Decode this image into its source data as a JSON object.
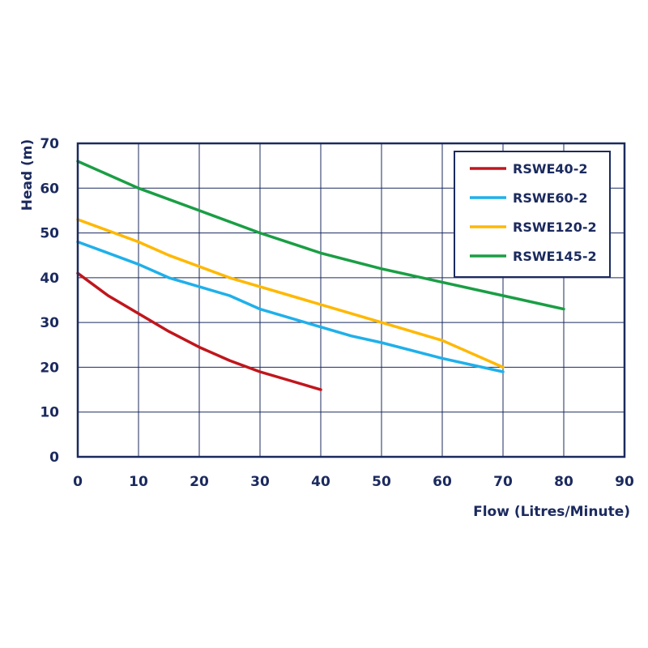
{
  "chart_data": {
    "type": "line",
    "title": "",
    "xlabel": "Flow (Litres/Minute)",
    "ylabel": "Head (m)",
    "xlim": [
      0,
      90
    ],
    "ylim": [
      0,
      70
    ],
    "xticks": [
      "0",
      "10",
      "20",
      "30",
      "40",
      "50",
      "60",
      "70",
      "80",
      "90"
    ],
    "yticks": [
      "0",
      "10",
      "20",
      "30",
      "40",
      "50",
      "60",
      "70"
    ],
    "grid": true,
    "legend_position": "top-right",
    "colors": {
      "axis": "#1b2a5e",
      "grid": "#1b2a5e"
    },
    "series": [
      {
        "name": "RSWE40-2",
        "color": "#c0161c",
        "x": [
          0,
          5,
          10,
          15,
          20,
          25,
          30,
          35,
          40
        ],
        "y": [
          41,
          36,
          32,
          28,
          24.5,
          21.5,
          19,
          17,
          15
        ]
      },
      {
        "name": "RSWE60-2",
        "color": "#1fb0ea",
        "x": [
          0,
          10,
          15,
          20,
          25,
          30,
          40,
          45,
          50,
          60,
          70
        ],
        "y": [
          48,
          43,
          40,
          38,
          36,
          33,
          29,
          27,
          25.5,
          22,
          19
        ]
      },
      {
        "name": "RSWE120-2",
        "color": "#ffb800",
        "x": [
          0,
          10,
          15,
          20,
          25,
          30,
          40,
          50,
          60,
          65,
          70
        ],
        "y": [
          53,
          48,
          45,
          42.5,
          40,
          38,
          34,
          30,
          26,
          23,
          20
        ]
      },
      {
        "name": "RSWE145-2",
        "color": "#1a9e44",
        "x": [
          0,
          10,
          20,
          30,
          40,
          50,
          60,
          70,
          80
        ],
        "y": [
          66,
          60,
          55,
          50,
          45.5,
          42,
          39,
          36,
          33
        ]
      }
    ]
  }
}
